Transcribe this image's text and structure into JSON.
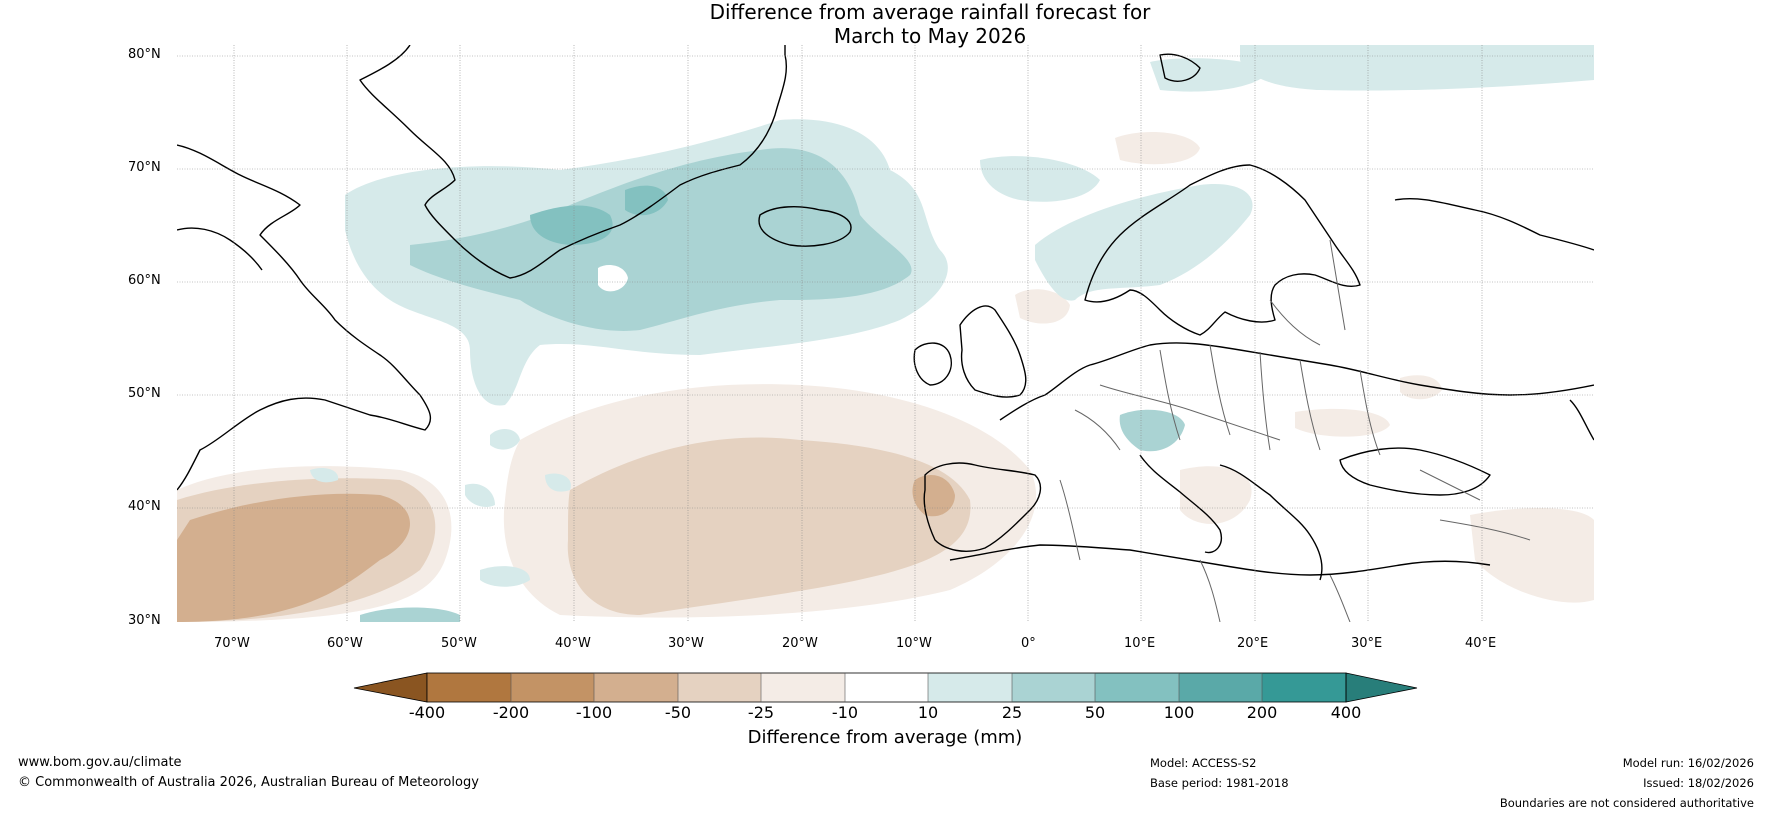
{
  "title": {
    "line1": "Difference from average rainfall forecast for",
    "line2": "March to May 2026"
  },
  "map": {
    "lat_labels": [
      "80°N",
      "70°N",
      "60°N",
      "50°N",
      "40°N",
      "30°N"
    ],
    "lon_labels": [
      "70°W",
      "60°W",
      "50°W",
      "40°W",
      "30°W",
      "20°W",
      "10°W",
      "0°",
      "10°E",
      "20°E",
      "30°E",
      "40°E"
    ]
  },
  "colorbar": {
    "ticks": [
      "-400",
      "-200",
      "-100",
      "-50",
      "-25",
      "-10",
      "10",
      "25",
      "50",
      "100",
      "200",
      "400"
    ],
    "colors": [
      "#8a5521",
      "#b0773f",
      "#c39365",
      "#d3af8f",
      "#e5d2c1",
      "#f4ece6",
      "#ffffff",
      "#d6eaea",
      "#aad3d3",
      "#83c1c0",
      "#5aa9a8",
      "#359996",
      "#287e7a"
    ],
    "label": "Difference from average (mm)"
  },
  "footer": {
    "website": "www.bom.gov.au/climate",
    "copyright": "© Commonwealth of Australia 2026, Australian Bureau of Meteorology",
    "model": "Model: ACCESS-S2",
    "base_period": "Base period: 1981-2018",
    "model_run": "Model run: 16/02/2026",
    "issued": "Issued: 18/02/2026",
    "disclaimer": "Boundaries are not considered authoritative"
  }
}
